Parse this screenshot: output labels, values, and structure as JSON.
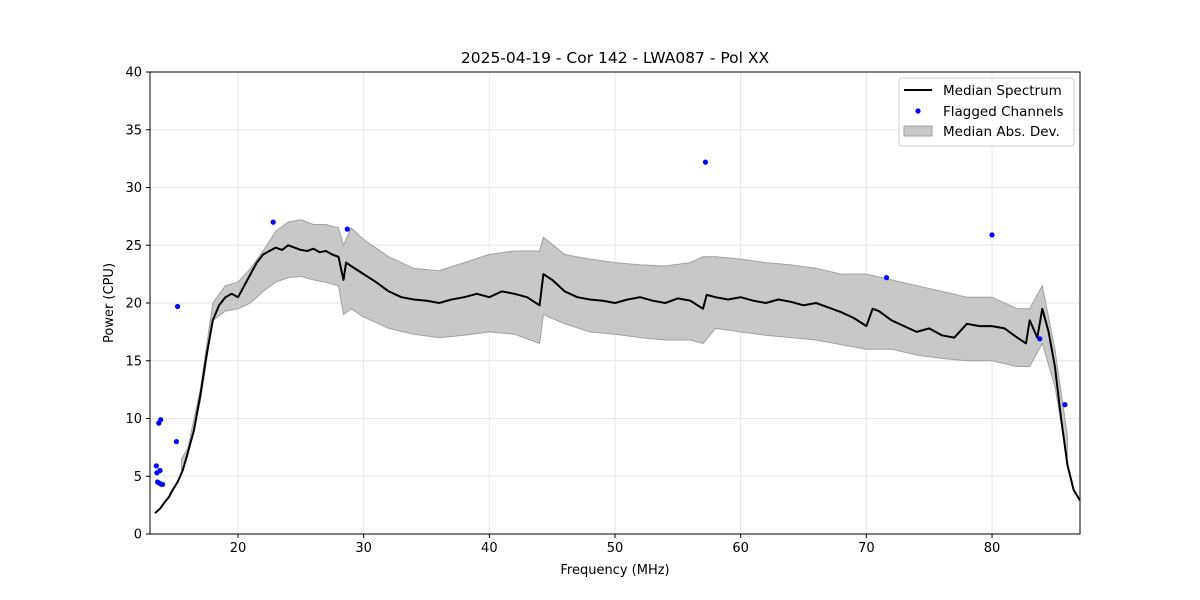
{
  "chart_data": {
    "type": "line",
    "title": "2025-04-19 - Cor 142 - LWA087 - Pol XX",
    "xlabel": "Frequency (MHz)",
    "ylabel": "Power (CPU)",
    "xlim": [
      13,
      87
    ],
    "ylim": [
      0,
      40
    ],
    "xticks": [
      20,
      30,
      40,
      50,
      60,
      70,
      80
    ],
    "yticks": [
      0,
      5,
      10,
      15,
      20,
      25,
      30,
      35,
      40
    ],
    "grid": true,
    "legend_position": "top-right",
    "colors": {
      "median": "#000000",
      "flagged": "#0000ff",
      "mad_fill": "#c8c8c8",
      "mad_edge": "#a0a0a0"
    },
    "series": [
      {
        "name": "Median Spectrum",
        "kind": "line",
        "x": [
          13.4,
          13.6,
          13.8,
          14.0,
          14.2,
          14.5,
          14.8,
          15.2,
          15.6,
          16.0,
          16.5,
          17.0,
          17.5,
          18.0,
          18.5,
          19.0,
          19.5,
          20.0,
          20.5,
          21.0,
          21.5,
          22.0,
          22.5,
          23.0,
          23.5,
          24.0,
          24.5,
          25.0,
          25.5,
          26.0,
          26.5,
          27.0,
          27.5,
          28.0,
          28.4,
          28.6,
          29.0,
          30.0,
          31.0,
          32.0,
          33.0,
          34.0,
          35.0,
          36.0,
          37.0,
          38.0,
          39.0,
          40.0,
          41.0,
          42.0,
          43.0,
          44.0,
          44.3,
          45.0,
          46.0,
          47.0,
          48.0,
          49.0,
          50.0,
          51.0,
          52.0,
          53.0,
          54.0,
          55.0,
          56.0,
          57.0,
          57.3,
          58.0,
          59.0,
          60.0,
          61.0,
          62.0,
          63.0,
          64.0,
          65.0,
          66.0,
          67.0,
          68.0,
          69.0,
          70.0,
          70.5,
          71.0,
          72.0,
          73.0,
          74.0,
          75.0,
          76.0,
          77.0,
          78.0,
          79.0,
          80.0,
          81.0,
          82.0,
          82.7,
          83.0,
          83.6,
          84.0,
          84.5,
          85.0,
          85.5,
          86.0,
          86.5,
          87.0
        ],
        "y": [
          1.8,
          2.0,
          2.2,
          2.5,
          2.8,
          3.2,
          3.8,
          4.5,
          5.5,
          7.0,
          9.0,
          12.0,
          15.5,
          18.5,
          19.8,
          20.5,
          20.8,
          20.5,
          21.5,
          22.5,
          23.5,
          24.2,
          24.5,
          24.8,
          24.6,
          25.0,
          24.8,
          24.6,
          24.5,
          24.7,
          24.4,
          24.5,
          24.2,
          24.0,
          22.0,
          23.5,
          23.2,
          22.5,
          21.8,
          21.0,
          20.5,
          20.3,
          20.2,
          20.0,
          20.3,
          20.5,
          20.8,
          20.5,
          21.0,
          20.8,
          20.5,
          19.8,
          22.5,
          22.0,
          21.0,
          20.5,
          20.3,
          20.2,
          20.0,
          20.3,
          20.5,
          20.2,
          20.0,
          20.4,
          20.2,
          19.5,
          20.7,
          20.5,
          20.3,
          20.5,
          20.2,
          20.0,
          20.3,
          20.1,
          19.8,
          20.0,
          19.6,
          19.2,
          18.7,
          18.0,
          19.5,
          19.3,
          18.5,
          18.0,
          17.5,
          17.8,
          17.2,
          17.0,
          18.2,
          18.0,
          18.0,
          17.8,
          17.0,
          16.5,
          18.5,
          17.0,
          19.5,
          17.5,
          14.5,
          10.0,
          6.0,
          3.8,
          2.9
        ]
      },
      {
        "name": "Flagged Channels",
        "kind": "scatter",
        "x": [
          13.5,
          13.55,
          13.6,
          13.7,
          13.75,
          13.8,
          13.85,
          13.9,
          14.0,
          15.1,
          15.2,
          22.8,
          28.7,
          57.2,
          71.6,
          80.0,
          83.8,
          85.8
        ],
        "y": [
          5.9,
          5.3,
          4.5,
          9.6,
          4.4,
          5.5,
          9.9,
          4.3,
          4.3,
          8.0,
          19.7,
          27.0,
          26.4,
          32.2,
          22.2,
          25.9,
          16.9,
          11.2
        ]
      },
      {
        "name": "Median Abs. Dev.",
        "kind": "band",
        "x": [
          15.5,
          16.0,
          17.0,
          18.0,
          19.0,
          20.0,
          21.0,
          22.0,
          23.0,
          24.0,
          25.0,
          26.0,
          27.0,
          28.0,
          28.4,
          29.0,
          30.0,
          32.0,
          34.0,
          36.0,
          38.0,
          40.0,
          42.0,
          44.0,
          44.3,
          46.0,
          48.0,
          50.0,
          52.0,
          54.0,
          56.0,
          57.0,
          58.0,
          60.0,
          62.0,
          64.0,
          66.0,
          68.0,
          70.0,
          72.0,
          74.0,
          76.0,
          78.0,
          80.0,
          82.0,
          83.0,
          84.0,
          85.0,
          86.0
        ],
        "lower": [
          5.5,
          6.8,
          11.5,
          18.5,
          19.3,
          19.5,
          20.0,
          21.0,
          21.8,
          22.2,
          22.3,
          22.0,
          21.8,
          21.5,
          19.0,
          19.5,
          18.8,
          17.8,
          17.3,
          17.0,
          17.2,
          17.5,
          17.3,
          16.5,
          19.0,
          18.2,
          17.5,
          17.3,
          17.0,
          16.8,
          16.8,
          16.5,
          17.8,
          17.5,
          17.2,
          17.0,
          16.8,
          16.4,
          16.0,
          16.0,
          15.5,
          15.2,
          15.0,
          15.0,
          14.5,
          14.5,
          16.5,
          12.8,
          6.5
        ],
        "upper": [
          6.5,
          7.4,
          12.5,
          20.0,
          21.5,
          21.8,
          23.0,
          24.5,
          26.2,
          27.0,
          27.2,
          26.8,
          26.8,
          26.5,
          25.0,
          26.5,
          25.5,
          24.0,
          23.0,
          22.8,
          23.5,
          24.2,
          24.5,
          24.5,
          25.7,
          24.2,
          23.8,
          23.5,
          23.3,
          23.2,
          23.5,
          24.0,
          24.0,
          23.8,
          23.5,
          23.3,
          23.0,
          22.5,
          22.5,
          22.0,
          21.5,
          21.0,
          20.5,
          20.5,
          19.5,
          19.5,
          21.5,
          16.0,
          8.5
        ]
      }
    ]
  }
}
